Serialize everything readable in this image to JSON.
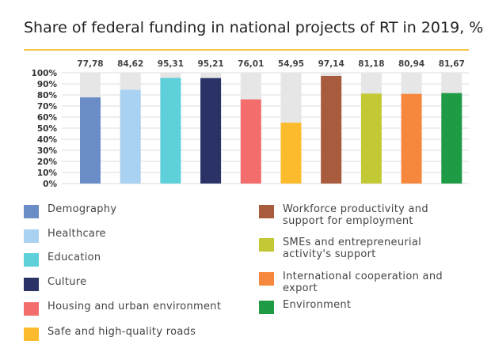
{
  "chart_data": {
    "type": "bar",
    "title": "Share of federal funding in national projects of RT in 2019, %",
    "categories": [
      "Demography",
      "Healthcare",
      "Education",
      "Culture",
      "Housing and urban environment",
      "Safe and high-quality roads",
      "Workforce productivity and support for employment",
      "SMEs and entrepreneurial activity's support",
      "International cooperation and export",
      "Environment"
    ],
    "values": [
      77.78,
      84.62,
      95.31,
      95.21,
      76.01,
      54.95,
      97.14,
      81.18,
      80.94,
      81.67
    ],
    "value_labels": [
      "77,78",
      "84,62",
      "95,31",
      "95,21",
      "76,01",
      "54,95",
      "97,14",
      "81,18",
      "80,94",
      "81,67"
    ],
    "colors": [
      "#6a8cc7",
      "#a9d2f2",
      "#5dd0da",
      "#2b3366",
      "#f46d6d",
      "#fcbb2c",
      "#a85b3d",
      "#c3c935",
      "#f6883d",
      "#1f9a45"
    ],
    "background_bar_color": "#e6e6e6",
    "accent_color": "#f6c544",
    "ylim": [
      0,
      100
    ],
    "y_ticks": [
      "0%",
      "10%",
      "20%",
      "30%",
      "40%",
      "50%",
      "60%",
      "70%",
      "80%",
      "90%",
      "100%"
    ],
    "grid": true,
    "legend_position": "bottom"
  },
  "legend": {
    "left": [
      {
        "label": "Demography",
        "color": "#6a8cc7"
      },
      {
        "label": "Healthcare",
        "color": "#a9d2f2"
      },
      {
        "label": "Education",
        "color": "#5dd0da"
      },
      {
        "label": "Culture",
        "color": "#2b3366"
      },
      {
        "label": "Housing and urban environment",
        "color": "#f46d6d"
      },
      {
        "label": "Safe and high-quality roads",
        "color": "#fcbb2c"
      }
    ],
    "right": [
      {
        "label": "Workforce productivity and support for employment",
        "color": "#a85b3d"
      },
      {
        "label": "SMEs and entrepreneurial activity's support",
        "color": "#c3c935"
      },
      {
        "label": "International cooperation and export",
        "color": "#f6883d"
      },
      {
        "label": "Environment",
        "color": "#1f9a45"
      }
    ]
  }
}
